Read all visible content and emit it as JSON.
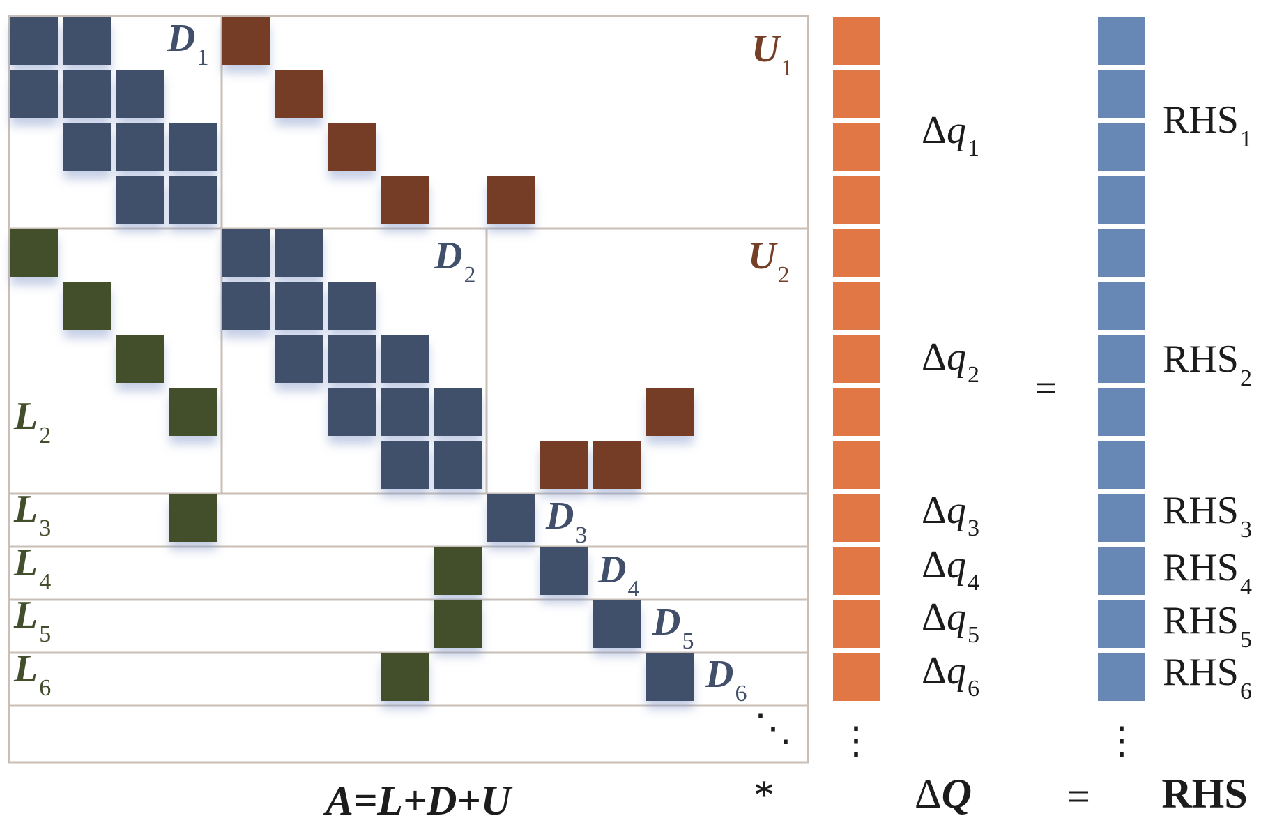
{
  "colors": {
    "diag": "#414f6b",
    "upper": "#753e27",
    "lower": "#434f2c",
    "dq": "#e07744",
    "rhs": "#6788b5",
    "grid": "#c9bfb7",
    "text": "#1c1c1c"
  },
  "matrix": {
    "block_labels": [
      {
        "id": "D1",
        "letter": "D",
        "sub": "1",
        "kind": "diag"
      },
      {
        "id": "U1",
        "letter": "U",
        "sub": "1",
        "kind": "upper"
      },
      {
        "id": "D2",
        "letter": "D",
        "sub": "2",
        "kind": "diag"
      },
      {
        "id": "U2",
        "letter": "U",
        "sub": "2",
        "kind": "upper"
      },
      {
        "id": "L2",
        "letter": "L",
        "sub": "2",
        "kind": "lower"
      },
      {
        "id": "L3",
        "letter": "L",
        "sub": "3",
        "kind": "lower"
      },
      {
        "id": "D3",
        "letter": "D",
        "sub": "3",
        "kind": "diag"
      },
      {
        "id": "L4",
        "letter": "L",
        "sub": "4",
        "kind": "lower"
      },
      {
        "id": "D4",
        "letter": "D",
        "sub": "4",
        "kind": "diag"
      },
      {
        "id": "L5",
        "letter": "L",
        "sub": "5",
        "kind": "lower"
      },
      {
        "id": "D5",
        "letter": "D",
        "sub": "5",
        "kind": "diag"
      },
      {
        "id": "L6",
        "letter": "L",
        "sub": "6",
        "kind": "lower"
      },
      {
        "id": "D6",
        "letter": "D",
        "sub": "6",
        "kind": "diag"
      }
    ],
    "caption": "A=L+D+U",
    "dots": "⋱"
  },
  "multiply_sign": "*",
  "unknown_vector": {
    "cells": 13,
    "labels": [
      {
        "prefix": "Δ",
        "letter": "q",
        "sub": "1"
      },
      {
        "prefix": "Δ",
        "letter": "q",
        "sub": "2"
      },
      {
        "prefix": "Δ",
        "letter": "q",
        "sub": "3"
      },
      {
        "prefix": "Δ",
        "letter": "q",
        "sub": "4"
      },
      {
        "prefix": "Δ",
        "letter": "q",
        "sub": "5"
      },
      {
        "prefix": "Δ",
        "letter": "q",
        "sub": "6"
      }
    ],
    "dots": "⋮",
    "caption_prefix": "Δ",
    "caption_letter": "Q"
  },
  "equals_sign": "=",
  "rhs_vector": {
    "cells": 13,
    "labels": [
      {
        "text": "RHS",
        "sub": "1"
      },
      {
        "text": "RHS",
        "sub": "2"
      },
      {
        "text": "RHS",
        "sub": "3"
      },
      {
        "text": "RHS",
        "sub": "4"
      },
      {
        "text": "RHS",
        "sub": "5"
      },
      {
        "text": "RHS",
        "sub": "6"
      }
    ],
    "dots": "⋮",
    "caption": "RHS"
  }
}
